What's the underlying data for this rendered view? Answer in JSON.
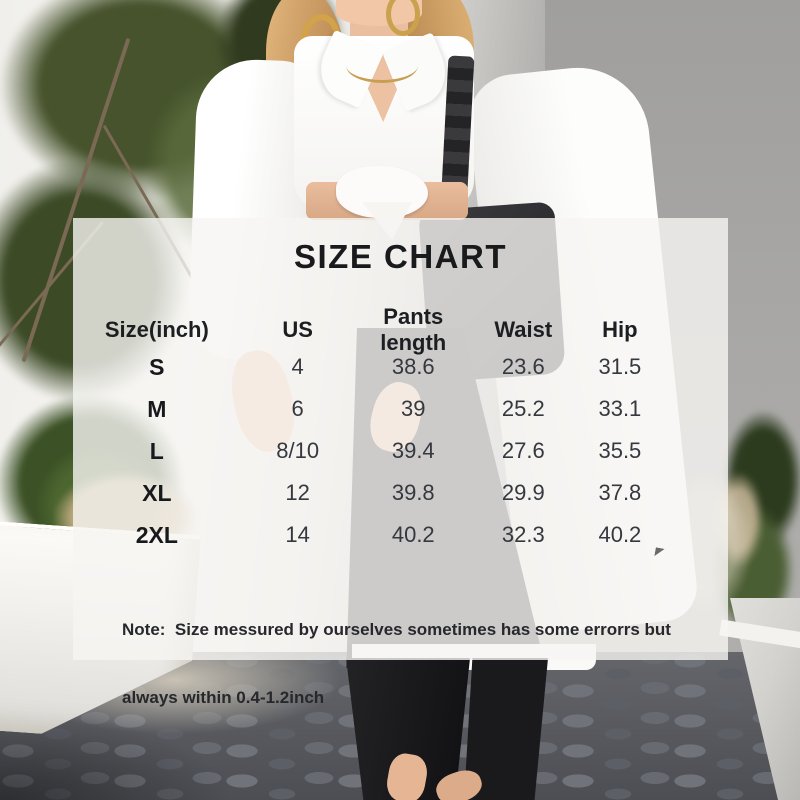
{
  "size_chart": {
    "title": "SIZE CHART",
    "columns": [
      "Size(inch)",
      "US",
      "Pants length",
      "Waist",
      "Hip"
    ],
    "rows": [
      [
        "S",
        "4",
        "38.6",
        "23.6",
        "31.5"
      ],
      [
        "M",
        "6",
        "39",
        "25.2",
        "33.1"
      ],
      [
        "L",
        "8/10",
        "39.4",
        "27.6",
        "35.5"
      ],
      [
        "XL",
        "12",
        "39.8",
        "29.9",
        "37.8"
      ],
      [
        "2XL",
        "14",
        "40.2",
        "32.3",
        "40.2"
      ]
    ],
    "note": {
      "line1": "Note:  Size messured by ourselves sometimes has some errorrs but",
      "line2": "always within 0.4-1.2inch"
    }
  },
  "chart_data": {
    "type": "table",
    "title": "SIZE CHART",
    "columns": [
      "Size(inch)",
      "US",
      "Pants length",
      "Waist",
      "Hip"
    ],
    "rows": [
      [
        "S",
        "4",
        "38.6",
        "23.6",
        "31.5"
      ],
      [
        "M",
        "6",
        "39",
        "25.2",
        "33.1"
      ],
      [
        "L",
        "8/10",
        "39.4",
        "27.6",
        "35.5"
      ],
      [
        "XL",
        "12",
        "39.8",
        "29.9",
        "37.8"
      ],
      [
        "2XL",
        "14",
        "40.2",
        "32.3",
        "40.2"
      ]
    ],
    "note": "Note: Size messured by ourselves sometimes has some errorrs but always within 0.4-1.2inch"
  },
  "colors": {
    "overlay_panel": "#F6F5F2",
    "title_text": "#191A1C",
    "value_text": "#35383E",
    "gray_wall": "#A8A7A5",
    "white_wall": "#F2F1ED",
    "foliage_dark": "#3C4A26",
    "pavement": "#56585D",
    "pants_black": "#1A1A1D",
    "hair_blonde": "#C2925A",
    "skin": "#EABF9F",
    "bag_black": "#2E2E31",
    "gold_jewelry": "#D2A348"
  }
}
